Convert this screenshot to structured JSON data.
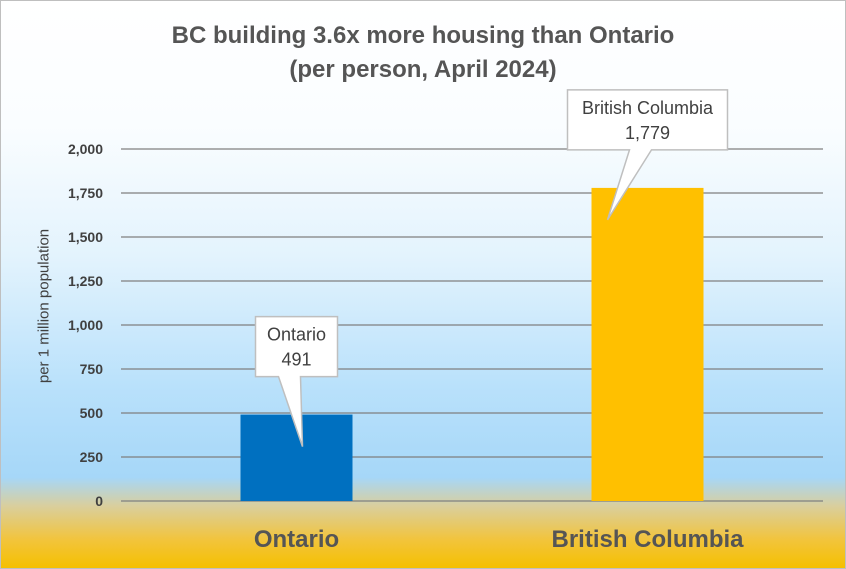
{
  "chart_data": {
    "type": "bar",
    "title_lines": [
      "BC building 3.6x more housing than Ontario",
      "(per person, April 2024)"
    ],
    "xlabel": "",
    "ylabel": "per 1 million population",
    "ylim": [
      0,
      2000
    ],
    "yticks": [
      0,
      250,
      500,
      750,
      1000,
      1250,
      1500,
      1750,
      2000
    ],
    "ytick_labels": [
      "0",
      "250",
      "500",
      "750",
      "1,000",
      "1,250",
      "1,500",
      "1,750",
      "2,000"
    ],
    "categories": [
      "Ontario",
      "British Columbia"
    ],
    "values": [
      491,
      1779
    ],
    "value_labels": [
      "491",
      "1,779"
    ],
    "bar_colors": [
      "#0070c0",
      "#ffc000"
    ],
    "grid": true,
    "legend": "none",
    "callouts": [
      {
        "name": "Ontario",
        "value": "491"
      },
      {
        "name": "British Columbia",
        "value": "1,779"
      }
    ]
  }
}
